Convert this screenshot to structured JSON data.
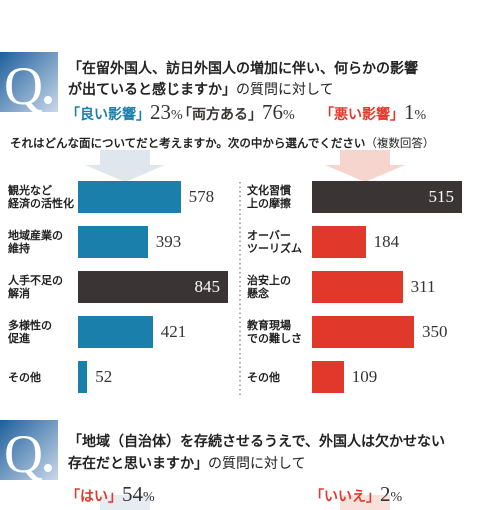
{
  "q1": {
    "line1": "「在留外国人、訪日外国人の増加に伴い、何らかの影響",
    "line2_bold": "が出ていると感じますか」",
    "line2_rest": "の質問に対して",
    "answers": [
      {
        "label": "「良い影響」",
        "value": 23,
        "unit": "%",
        "color": "#1a7fab"
      },
      {
        "label": "「両方ある」",
        "value": 76,
        "unit": "%",
        "color": "#3b3434"
      },
      {
        "label": "「悪い影響」",
        "value": 1,
        "unit": "%",
        "color": "#e0392b"
      }
    ],
    "sub_bold": "それはどんな面についてだと考えますか。次の中から選んでください",
    "sub_rest": "（複数回答）"
  },
  "chart_data": [
    {
      "type": "bar",
      "orientation": "horizontal",
      "categories": [
        "観光など\n経済の活性化",
        "地域産業の\n維持",
        "人手不足の\n解消",
        "多様性の\n促進",
        "その他"
      ],
      "values": [
        578,
        393,
        845,
        421,
        52
      ],
      "colors": [
        "#1a7fab",
        "#1a7fab",
        "#3b3434",
        "#1a7fab",
        "#1a7fab"
      ]
    },
    {
      "type": "bar",
      "orientation": "horizontal",
      "categories": [
        "文化習慣\n上の摩擦",
        "オーバー\nツーリズム",
        "治安上の\n懸念",
        "教育現場\nでの難しさ",
        "その他"
      ],
      "values": [
        515,
        184,
        311,
        350,
        109
      ],
      "colors": [
        "#3b3434",
        "#e0392b",
        "#e0392b",
        "#e0392b",
        "#e0392b"
      ]
    }
  ],
  "q2": {
    "line1": "「地域（自治体）を存続させるうえで、外国人は欠かせない",
    "line2_bold": "存在だと思いますか」",
    "line2_rest": "の質問に対して",
    "answers": [
      {
        "label": "「はい」",
        "value": 54,
        "unit": "%",
        "color": "#e0392b"
      },
      {
        "label": "「いいえ」",
        "value": 2,
        "unit": "%",
        "color": "#e0392b"
      }
    ]
  }
}
